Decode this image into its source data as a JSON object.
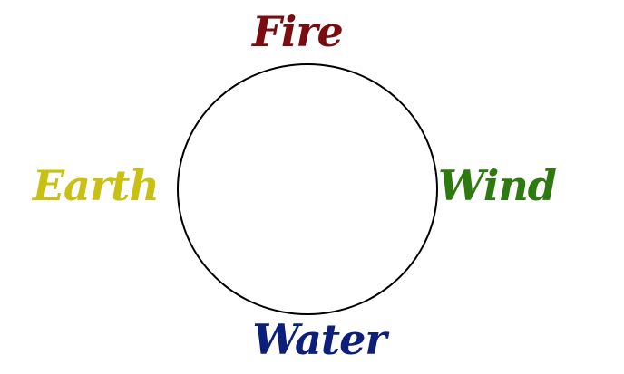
{
  "diagram": {
    "elements": [
      {
        "name": "Fire",
        "color": "#7b0d10"
      },
      {
        "name": "Wind",
        "color": "#2d7a0f"
      },
      {
        "name": "Water",
        "color": "#0c1f7a"
      },
      {
        "name": "Earth",
        "color": "#c9c012"
      }
    ]
  }
}
